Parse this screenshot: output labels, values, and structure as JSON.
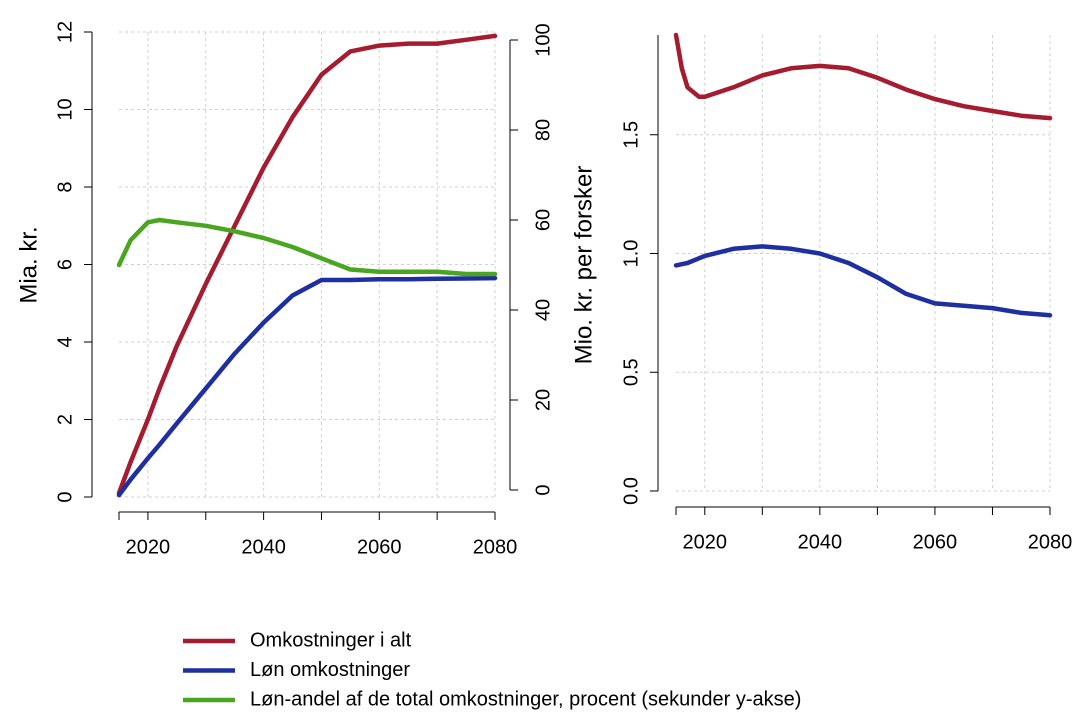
{
  "chart_data": [
    {
      "type": "line",
      "ylabel": "Mia. kr.",
      "x": [
        2015,
        2017,
        2020,
        2022,
        2025,
        2030,
        2035,
        2040,
        2045,
        2050,
        2055,
        2060,
        2065,
        2070,
        2075,
        2080
      ],
      "xlim": [
        2015,
        2080
      ],
      "xticks": [
        2020,
        2040,
        2060,
        2080
      ],
      "xgrid": [
        2020,
        2030,
        2040,
        2050,
        2060,
        2070,
        2080
      ],
      "ylim": [
        0,
        12
      ],
      "yticks": [
        0,
        2,
        4,
        6,
        8,
        10,
        12
      ],
      "y2lim": [
        0,
        100
      ],
      "y2ticks": [
        0,
        20,
        40,
        60,
        80,
        100
      ],
      "grid": true,
      "series": [
        {
          "name": "Omkostninger i alt",
          "color": "#a51c30",
          "values": [
            0.1,
            0.9,
            2.0,
            2.8,
            3.9,
            5.5,
            7.0,
            8.5,
            9.8,
            10.9,
            11.5,
            11.65,
            11.7,
            11.7,
            11.8,
            11.9
          ]
        },
        {
          "name": "Løn omkostninger",
          "color": "#1f2fa0",
          "values": [
            0.05,
            0.45,
            1.0,
            1.35,
            1.9,
            2.8,
            3.7,
            4.5,
            5.2,
            5.6,
            5.6,
            5.62,
            5.62,
            5.63,
            5.64,
            5.65
          ]
        },
        {
          "name": "Løn-andel af de total omkostninger, procent (sekunder y-akse)",
          "color": "#4aa520",
          "axis": "y2",
          "values": [
            50,
            55.5,
            59.5,
            60,
            59.5,
            58.7,
            57.5,
            56,
            54,
            51.5,
            49,
            48.5,
            48.5,
            48.5,
            48,
            48
          ]
        }
      ]
    },
    {
      "type": "line",
      "ylabel": "Mio. kr. per forsker",
      "x": [
        2015,
        2016,
        2017,
        2019,
        2020,
        2025,
        2030,
        2035,
        2040,
        2045,
        2050,
        2055,
        2060,
        2065,
        2070,
        2075,
        2080
      ],
      "xlim": [
        2015,
        2080
      ],
      "xticks": [
        2020,
        2040,
        2060,
        2080
      ],
      "xgrid": [
        2020,
        2030,
        2040,
        2050,
        2060,
        2070,
        2080
      ],
      "ylim": [
        0,
        1.92
      ],
      "yticks": [
        {
          "value": 0,
          "label": "0.0"
        },
        0.5,
        {
          "value": 1,
          "label": "1.0"
        },
        1.5
      ],
      "grid": true,
      "series": [
        {
          "color": "#a51c30",
          "values": [
            1.92,
            1.78,
            1.7,
            1.66,
            1.66,
            1.7,
            1.75,
            1.78,
            1.79,
            1.78,
            1.74,
            1.69,
            1.65,
            1.62,
            1.6,
            1.58,
            1.57
          ]
        },
        {
          "color": "#1f2fa0",
          "values": [
            0.95,
            0.955,
            0.96,
            0.98,
            0.99,
            1.02,
            1.03,
            1.02,
            1.0,
            0.96,
            0.9,
            0.83,
            0.79,
            0.78,
            0.77,
            0.75,
            0.74
          ]
        }
      ]
    }
  ]
}
